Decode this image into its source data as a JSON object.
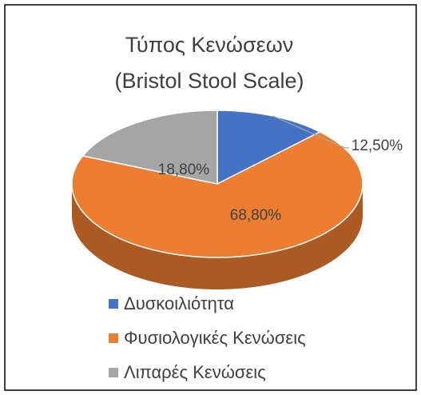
{
  "chart_data": {
    "type": "pie",
    "title": [
      "Τύπος Κενώσεων",
      "(Bristol Stool Scale)"
    ],
    "categories": [
      "Δυσκοιλιότητα",
      "Φυσιολογικές Κενώσεις",
      "Λιπαρές Κενώσεις"
    ],
    "values": [
      12.5,
      68.8,
      18.8
    ],
    "value_labels": [
      "12,50%",
      "68,80%",
      "18,80%"
    ],
    "colors": [
      "#4472c4",
      "#ed7d31",
      "#a5a5a5"
    ]
  }
}
